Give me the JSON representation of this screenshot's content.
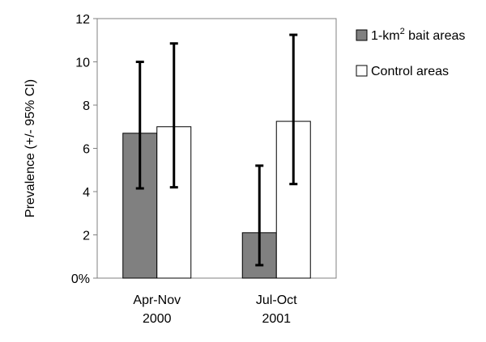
{
  "chart_data": {
    "type": "bar",
    "categories": [
      {
        "line1": "Apr-Nov",
        "line2": "2000"
      },
      {
        "line1": "Jul-Oct",
        "line2": "2001"
      }
    ],
    "series": [
      {
        "name_prefix": "1-km",
        "name_sup": "2",
        "name_suffix": " bait areas",
        "color": "#808080",
        "values": [
          6.7,
          2.1
        ],
        "ci_low": [
          4.15,
          0.6
        ],
        "ci_high": [
          10.0,
          5.2
        ]
      },
      {
        "name": "Control areas",
        "color": "#ffffff",
        "values": [
          7.0,
          7.25
        ],
        "ci_low": [
          4.2,
          4.35
        ],
        "ci_high": [
          10.85,
          11.25
        ]
      }
    ],
    "ylabel": "Prevalence (+/- 95% CI)",
    "ylim": [
      0,
      12
    ],
    "yticks": [
      {
        "value": 0,
        "label": "0%"
      },
      {
        "value": 2,
        "label": "2"
      },
      {
        "value": 4,
        "label": "4"
      },
      {
        "value": 6,
        "label": "6"
      },
      {
        "value": 8,
        "label": "8"
      },
      {
        "value": 10,
        "label": "10"
      },
      {
        "value": 12,
        "label": "12"
      }
    ],
    "grid": false,
    "legend_position": "right",
    "axis_color": "#808080",
    "bar_stroke": "#000000",
    "errorbar_color": "#000000"
  }
}
